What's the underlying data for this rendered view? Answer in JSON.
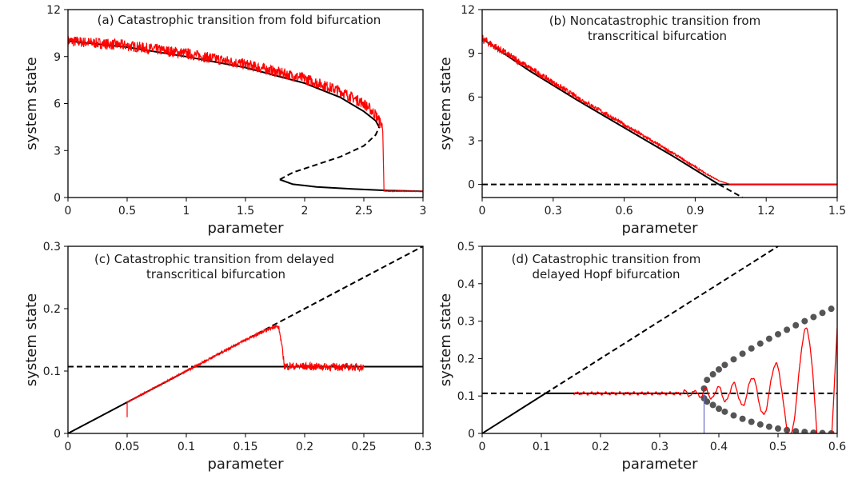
{
  "chart_data": [
    {
      "id": "a",
      "type": "line",
      "title": [
        "(a) Catastrophic transition from fold bifurcation"
      ],
      "xlabel": "parameter",
      "ylabel": "system state",
      "xlim": [
        0,
        3
      ],
      "ylim": [
        0,
        12
      ],
      "xticks": [
        0,
        0.5,
        1,
        1.5,
        2,
        2.5,
        3
      ],
      "xtick_labels": [
        "0",
        "0.5",
        "1",
        "1.5",
        "2",
        "2.5",
        "3"
      ],
      "yticks": [
        0,
        3,
        6,
        9,
        12
      ],
      "ytick_labels": [
        "0",
        "3",
        "6",
        "9",
        "12"
      ],
      "grid": false,
      "series": [
        {
          "style": "solid-black",
          "x": [
            0,
            0.5,
            1,
            1.5,
            2,
            2.3,
            2.5,
            2.6,
            2.63
          ],
          "y": [
            10.0,
            9.6,
            9.0,
            8.3,
            7.3,
            6.4,
            5.5,
            4.9,
            4.5
          ]
        },
        {
          "style": "dashed-black",
          "x": [
            1.79,
            1.9,
            2.1,
            2.3,
            2.5,
            2.6,
            2.63
          ],
          "y": [
            1.15,
            1.6,
            2.1,
            2.6,
            3.3,
            4.0,
            4.5
          ]
        },
        {
          "style": "solid-black",
          "x": [
            1.79,
            1.9,
            2.1,
            2.4,
            2.7,
            3.0
          ],
          "y": [
            1.15,
            0.85,
            0.68,
            0.55,
            0.45,
            0.4
          ]
        },
        {
          "style": "noisy-red",
          "x": [
            0,
            0.5,
            1,
            1.5,
            2,
            2.3,
            2.5,
            2.6,
            2.66,
            2.67,
            3.0
          ],
          "y": [
            10.0,
            9.7,
            9.2,
            8.5,
            7.6,
            6.8,
            6.0,
            5.3,
            4.5,
            0.4,
            0.4
          ],
          "noise_amp": [
            0.35,
            0.35,
            0.35,
            0.35,
            0.35,
            0.35,
            0.35,
            0.35,
            0.35,
            0.02,
            0.02
          ]
        }
      ]
    },
    {
      "id": "b",
      "type": "line",
      "title": [
        "(b) Noncatastrophic transition from",
        "transcritical bifurcation"
      ],
      "xlabel": "parameter",
      "ylabel": "system state",
      "xlim": [
        0,
        1.5
      ],
      "ylim": [
        -0.9,
        12
      ],
      "xticks": [
        0,
        0.3,
        0.6,
        0.9,
        1.2,
        1.5
      ],
      "xtick_labels": [
        "0",
        "0.3",
        "0.6",
        "0.9",
        "1.2",
        "1.5"
      ],
      "yticks": [
        0,
        3,
        6,
        9,
        12
      ],
      "ytick_labels": [
        "0",
        "3",
        "6",
        "9",
        "12"
      ],
      "grid": false,
      "series": [
        {
          "style": "solid-black",
          "x": [
            0,
            0.1,
            0.2,
            0.4,
            0.6,
            0.8,
            0.9,
            1.0
          ],
          "y": [
            10.0,
            8.9,
            7.8,
            5.8,
            3.9,
            2.0,
            1.0,
            0.0
          ]
        },
        {
          "style": "dashed-black",
          "x": [
            1.0,
            1.1
          ],
          "y": [
            0.0,
            -0.9
          ]
        },
        {
          "style": "dashed-black",
          "x": [
            0,
            1.0
          ],
          "y": [
            0,
            0
          ]
        },
        {
          "style": "solid-black",
          "x": [
            1.0,
            1.5
          ],
          "y": [
            0,
            0
          ]
        },
        {
          "style": "noisy-red",
          "x": [
            0,
            0.1,
            0.2,
            0.4,
            0.6,
            0.8,
            0.9,
            0.95,
            1.0,
            1.05,
            1.5
          ],
          "y": [
            10.0,
            9.0,
            8.0,
            6.0,
            4.1,
            2.2,
            1.2,
            0.7,
            0.25,
            0.0,
            0.0
          ],
          "noise_amp": [
            0.3,
            0.25,
            0.2,
            0.16,
            0.12,
            0.09,
            0.07,
            0.05,
            0.02,
            0.0,
            0.0
          ]
        }
      ]
    },
    {
      "id": "c",
      "type": "line",
      "title": [
        "(c) Catastrophic transition from delayed",
        "transcritical bifurcation"
      ],
      "xlabel": "parameter",
      "ylabel": "system state",
      "xlim": [
        0,
        0.3
      ],
      "ylim": [
        0,
        0.3
      ],
      "xticks": [
        0,
        0.05,
        0.1,
        0.15,
        0.2,
        0.25,
        0.3
      ],
      "xtick_labels": [
        "0",
        "0.05",
        "0.1",
        "0.15",
        "0.2",
        "0.25",
        "0.3"
      ],
      "yticks": [
        0,
        0.1,
        0.2,
        0.3
      ],
      "ytick_labels": [
        "0",
        "0.1",
        "0.2",
        "0.3"
      ],
      "grid": false,
      "series": [
        {
          "style": "solid-black",
          "x": [
            0,
            0.107
          ],
          "y": [
            0,
            0.107
          ]
        },
        {
          "style": "dashed-black",
          "x": [
            0.107,
            0.3
          ],
          "y": [
            0.107,
            0.3
          ]
        },
        {
          "style": "dashed-black",
          "x": [
            0,
            0.107
          ],
          "y": [
            0.107,
            0.107
          ]
        },
        {
          "style": "solid-black",
          "x": [
            0.107,
            0.3
          ],
          "y": [
            0.107,
            0.107
          ]
        },
        {
          "style": "noisy-red",
          "x": [
            0.05,
            0.05,
            0.1,
            0.15,
            0.175,
            0.178,
            0.18,
            0.183,
            0.25
          ],
          "y": [
            0.026,
            0.05,
            0.1,
            0.15,
            0.172,
            0.17,
            0.15,
            0.108,
            0.106
          ],
          "noise_amp": [
            0,
            0.001,
            0.0015,
            0.002,
            0.003,
            0.003,
            0.003,
            0.006,
            0.006
          ]
        }
      ]
    },
    {
      "id": "d",
      "type": "line",
      "title": [
        "(d) Catastrophic transition from",
        "delayed Hopf bifurcation"
      ],
      "xlabel": "parameter",
      "ylabel": "system state",
      "xlim": [
        0,
        0.6
      ],
      "ylim": [
        0,
        0.5
      ],
      "xticks": [
        0,
        0.1,
        0.2,
        0.3,
        0.4,
        0.5,
        0.6
      ],
      "xtick_labels": [
        "0",
        "0.1",
        "0.2",
        "0.3",
        "0.4",
        "0.5",
        "0.6"
      ],
      "yticks": [
        0,
        0.1,
        0.2,
        0.3,
        0.4,
        0.5
      ],
      "ytick_labels": [
        "0",
        "0.1",
        "0.2",
        "0.3",
        "0.4",
        "0.5"
      ],
      "grid": false,
      "vline": {
        "x": 0.375,
        "y": [
          0,
          0.107
        ],
        "color": "#6a6ad0"
      },
      "series": [
        {
          "style": "solid-black",
          "x": [
            0,
            0.107
          ],
          "y": [
            0,
            0.107
          ]
        },
        {
          "style": "dashed-black",
          "x": [
            0.107,
            0.5
          ],
          "y": [
            0.107,
            0.5
          ]
        },
        {
          "style": "dashed-black",
          "x": [
            0,
            0.107
          ],
          "y": [
            0.107,
            0.107
          ]
        },
        {
          "style": "solid-black",
          "x": [
            0.107,
            0.375
          ],
          "y": [
            0.107,
            0.107
          ]
        },
        {
          "style": "dashed-black",
          "x": [
            0.375,
            0.6
          ],
          "y": [
            0.107,
            0.107
          ]
        },
        {
          "style": "dots-gray",
          "x": [
            0.375,
            0.38,
            0.39,
            0.4,
            0.41,
            0.425,
            0.44,
            0.455,
            0.47,
            0.485,
            0.5,
            0.515,
            0.53,
            0.545,
            0.56,
            0.575,
            0.59
          ],
          "y": [
            0.12,
            0.143,
            0.158,
            0.171,
            0.183,
            0.198,
            0.213,
            0.227,
            0.24,
            0.253,
            0.265,
            0.277,
            0.289,
            0.3,
            0.311,
            0.322,
            0.333
          ]
        },
        {
          "style": "dots-gray",
          "x": [
            0.375,
            0.38,
            0.39,
            0.4,
            0.41,
            0.425,
            0.44,
            0.455,
            0.47,
            0.485,
            0.5,
            0.515,
            0.53,
            0.545,
            0.56,
            0.575,
            0.59
          ],
          "y": [
            0.094,
            0.085,
            0.076,
            0.066,
            0.058,
            0.048,
            0.039,
            0.031,
            0.024,
            0.018,
            0.013,
            0.009,
            0.006,
            0.004,
            0.002,
            0.001,
            0.0
          ]
        },
        {
          "style": "oscillation-red",
          "x_start": 0.155,
          "x_end": 0.6,
          "baseline": 0.107
        }
      ]
    }
  ]
}
